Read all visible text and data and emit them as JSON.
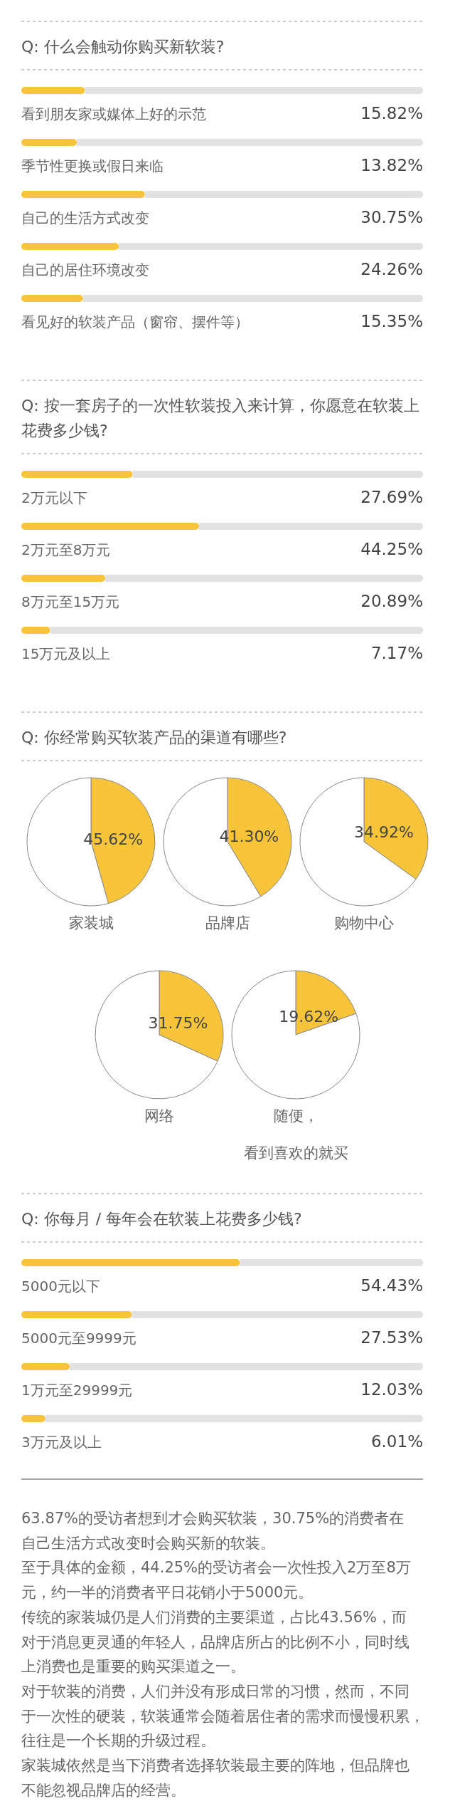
{
  "chart_data": [
    {
      "type": "bar",
      "orientation": "horizontal",
      "title": "Q: 什么会触动你购买新软装?",
      "categories": [
        "看到朋友家或媒体上好的示范",
        "季节性更换或假日来临",
        "自己的生活方式改变",
        "自己的居住环境改变",
        "看见好的软装产品（窗帘、摆件等）"
      ],
      "values": [
        15.82,
        13.82,
        30.75,
        24.26,
        15.35
      ],
      "value_labels": [
        "15.82%",
        "13.82%",
        "30.75%",
        "24.26%",
        "15.35%"
      ],
      "color": "#f7c43c",
      "xlim": [
        0,
        100
      ]
    },
    {
      "type": "bar",
      "orientation": "horizontal",
      "title": "Q: 按一套房子的一次性软装投入来计算，你愿意在软装上花费多少钱?",
      "categories": [
        "2万元以下",
        "2万元至8万元",
        "8万元至15万元",
        "15万元及以上"
      ],
      "values": [
        27.69,
        44.25,
        20.89,
        7.17
      ],
      "value_labels": [
        "27.69%",
        "44.25%",
        "20.89%",
        "7.17%"
      ],
      "color": "#f7c43c",
      "xlim": [
        0,
        100
      ]
    },
    {
      "type": "other",
      "title": "Q: 你经常购买软装产品的渠道有哪些?"
    },
    {
      "type": "pie",
      "title": "家装城",
      "categories": [
        null,
        null
      ],
      "values": [
        45.62,
        54.38
      ],
      "colors": [
        "#f8c53a",
        "#ffffff"
      ],
      "value_labels": [
        "45.62%",
        null
      ]
    },
    {
      "type": "pie",
      "title": "品牌店",
      "categories": [
        null,
        null
      ],
      "values": [
        41.3,
        58.7
      ],
      "colors": [
        "#f8c53a",
        "#ffffff"
      ],
      "value_labels": [
        "41.30%",
        null
      ]
    },
    {
      "type": "pie",
      "title": "购物中心",
      "categories": [
        null,
        null
      ],
      "values": [
        34.92,
        65.08
      ],
      "colors": [
        "#f8c53a",
        "#ffffff"
      ],
      "value_labels": [
        "34.92%",
        null
      ]
    },
    {
      "type": "pie",
      "title": "网络",
      "categories": [
        null,
        null
      ],
      "values": [
        31.75,
        68.25
      ],
      "colors": [
        "#f8c53a",
        "#ffffff"
      ],
      "value_labels": [
        "31.75%",
        null
      ]
    },
    {
      "type": "pie",
      "title": "随便，看到喜欢的就买",
      "categories": [
        null,
        null
      ],
      "values": [
        19.62,
        80.38
      ],
      "colors": [
        "#f8c53a",
        "#ffffff"
      ],
      "value_labels": [
        "19.62%",
        null
      ]
    },
    {
      "type": "bar",
      "orientation": "horizontal",
      "title": "Q: 你每月 / 每年会在软装上花费多少钱?",
      "categories": [
        "5000元以下",
        "5000元至9999元",
        "1万元至29999元",
        "3万元及以上"
      ],
      "values": [
        54.43,
        27.53,
        12.03,
        6.01
      ],
      "value_labels": [
        "54.43%",
        "27.53%",
        "12.03%",
        "6.01%"
      ],
      "color": "#f7c43c",
      "xlim": [
        0,
        100
      ]
    },
    {
      "type": "other",
      "annotations": [
        "63.87%的受访者想到才会购买软装，30.75%的消费者在自己生活方式改变时会购买新的软装。",
        "至于具体的金额，44.25%的受访者会一次性投入2万至8万元，约一半的消费者平日花销小于5000元。",
        "传统的家装城仍是人们消费的主要渠道，占比43.56%，而对于消息更灵通的年轻人，品牌店所占的比例不小，同时线上消费也是重要的购买渠道之一。",
        "对于软装的消费，人们并没有形成日常的习惯，然而，不同于一次性的硬装，软装通常会随着居住者的需求而慢慢积累，往往是一个长期的升级过程。",
        "家装城依然是当下消费者选择软装最主要的阵地，但品牌也不能忽视品牌店的经营。"
      ]
    }
  ]
}
